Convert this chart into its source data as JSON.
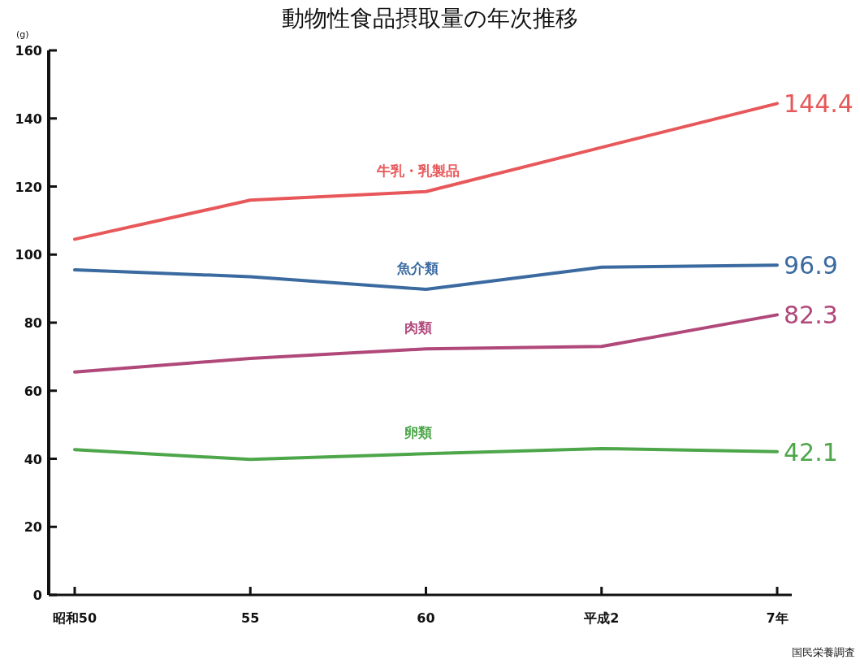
{
  "chart_data": {
    "type": "line",
    "title": "動物性食品摂取量の年次推移",
    "ylabel": "(g)",
    "categories": [
      "昭和50",
      "55",
      "60",
      "平成2",
      "7年"
    ],
    "series": [
      {
        "name": "牛乳・乳製品",
        "color": "#e8585a",
        "values": [
          104.5,
          116,
          118.5,
          131.5,
          144.4
        ],
        "value_labels": [
          null,
          null,
          null,
          null,
          "144.4"
        ]
      },
      {
        "name": "魚介類",
        "color": "#3a6aa0",
        "values": [
          95.5,
          93.5,
          89.8,
          96.3,
          96.9
        ],
        "value_labels": [
          null,
          null,
          null,
          null,
          "96.9"
        ]
      },
      {
        "name": "肉類",
        "color": "#b0487a",
        "values": [
          65.5,
          69.5,
          72.3,
          73,
          82.3
        ],
        "value_labels": [
          null,
          null,
          null,
          null,
          "82.3"
        ]
      },
      {
        "name": "卵類",
        "color": "#4da64a",
        "values": [
          42.7,
          39.8,
          41.5,
          43,
          42.1
        ],
        "value_labels": [
          null,
          null,
          null,
          null,
          "42.1"
        ]
      }
    ],
    "ylim": [
      0,
      160
    ],
    "yticks": [
      0,
      20,
      40,
      60,
      80,
      100,
      120,
      140,
      160
    ],
    "grid": false,
    "legend": false,
    "marker": "none",
    "line_style": "solid",
    "annotations": [
      "国民栄養調査"
    ]
  }
}
